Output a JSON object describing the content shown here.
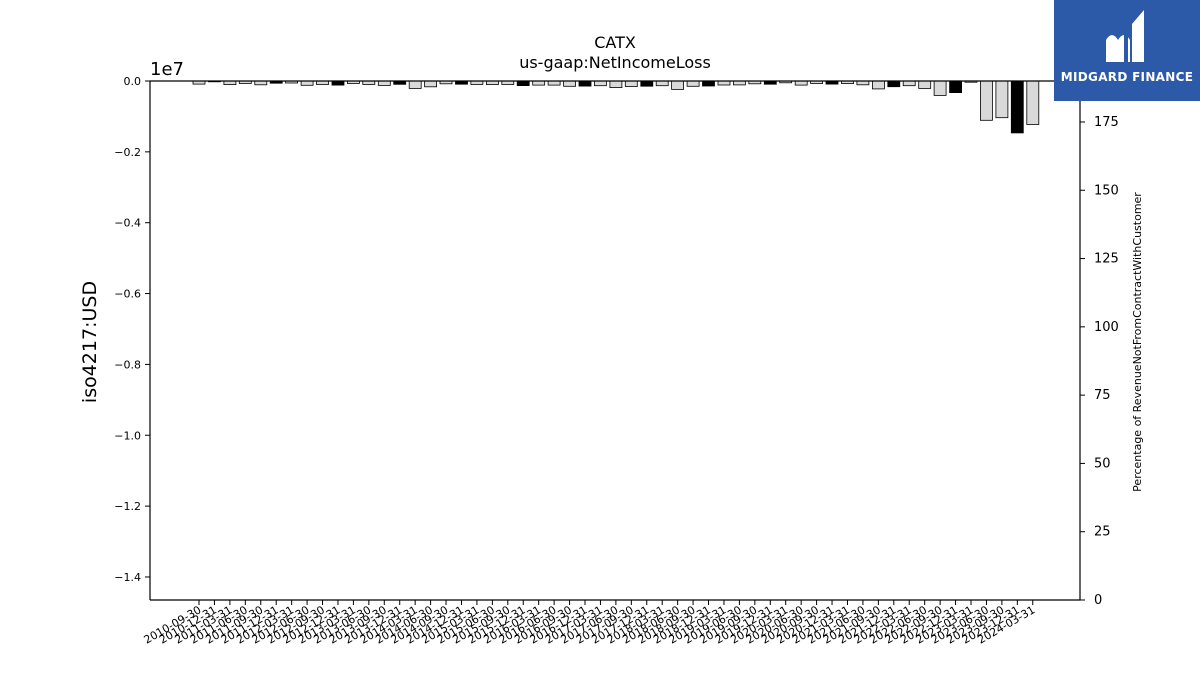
{
  "chart_data": {
    "type": "bar",
    "title": "CATX",
    "subtitle": "us-gaap:NetIncomeLoss",
    "ylabel": "iso4217:USD",
    "y_offset_label": "1e7",
    "y2label": "Percentage of RevenueNotFromContractWithCustomer",
    "ylim": [
      -14.65,
      0
    ],
    "y_scale": 10000000,
    "y_ticks": [
      "0.0",
      "-0.2",
      "-0.4",
      "-0.6",
      "-0.8",
      "-1.0",
      "-1.2",
      "-1.4"
    ],
    "y2lim": [
      0,
      190
    ],
    "y2_ticks": [
      "0",
      "25",
      "50",
      "75",
      "100",
      "125",
      "150",
      "175"
    ],
    "categories": [
      "2010-09-30",
      "2010-12-31",
      "2011-03-31",
      "2011-06-30",
      "2011-09-30",
      "2011-12-31",
      "2012-03-31",
      "2012-06-30",
      "2012-09-30",
      "2012-12-31",
      "2013-03-31",
      "2013-06-30",
      "2013-09-30",
      "2013-12-31",
      "2014-03-31",
      "2014-06-30",
      "2014-09-30",
      "2014-12-31",
      "2015-03-31",
      "2015-06-30",
      "2015-09-30",
      "2015-12-31",
      "2016-03-31",
      "2016-06-30",
      "2016-09-30",
      "2016-12-31",
      "2017-03-31",
      "2017-06-30",
      "2017-09-30",
      "2017-12-31",
      "2018-03-31",
      "2018-06-30",
      "2018-09-30",
      "2018-12-31",
      "2019-03-31",
      "2019-06-30",
      "2019-09-30",
      "2019-12-31",
      "2020-03-31",
      "2020-06-30",
      "2020-09-30",
      "2020-12-31",
      "2021-03-31",
      "2021-06-30",
      "2021-09-30",
      "2021-12-31",
      "2022-03-31",
      "2022-06-30",
      "2022-09-30",
      "2022-12-31",
      "2023-03-31",
      "2023-06-30",
      "2023-09-30",
      "2023-12-31",
      "2024-03-31"
    ],
    "values": [
      -0.087,
      -0.022,
      -0.103,
      -0.071,
      -0.108,
      -0.062,
      -0.057,
      -0.12,
      -0.098,
      -0.115,
      -0.071,
      -0.098,
      -0.125,
      -0.092,
      -0.208,
      -0.165,
      -0.078,
      -0.09,
      -0.097,
      -0.103,
      -0.1,
      -0.13,
      -0.117,
      -0.117,
      -0.15,
      -0.145,
      -0.133,
      -0.185,
      -0.155,
      -0.147,
      -0.133,
      -0.236,
      -0.15,
      -0.142,
      -0.113,
      -0.11,
      -0.08,
      -0.09,
      -0.052,
      -0.117,
      -0.07,
      -0.088,
      -0.073,
      -0.107,
      -0.223,
      -0.16,
      -0.133,
      -0.208,
      -0.407,
      -0.328,
      -0.035,
      -1.11,
      -1.035,
      -1.465,
      -1.227
    ],
    "highlight": [
      false,
      true,
      false,
      false,
      false,
      true,
      false,
      false,
      false,
      true,
      false,
      false,
      false,
      true,
      false,
      false,
      false,
      true,
      false,
      false,
      false,
      true,
      false,
      false,
      false,
      true,
      false,
      false,
      false,
      true,
      false,
      false,
      false,
      true,
      false,
      false,
      false,
      true,
      false,
      false,
      false,
      true,
      false,
      false,
      false,
      true,
      false,
      false,
      false,
      true,
      false,
      false,
      false,
      true,
      false
    ],
    "colors": {
      "bar": "#d9d9d9",
      "highlight_bar": "#000000",
      "edge": "#000000"
    }
  },
  "logo": {
    "text": "MIDGARD FINANCE",
    "color": "#2d5aa8"
  }
}
